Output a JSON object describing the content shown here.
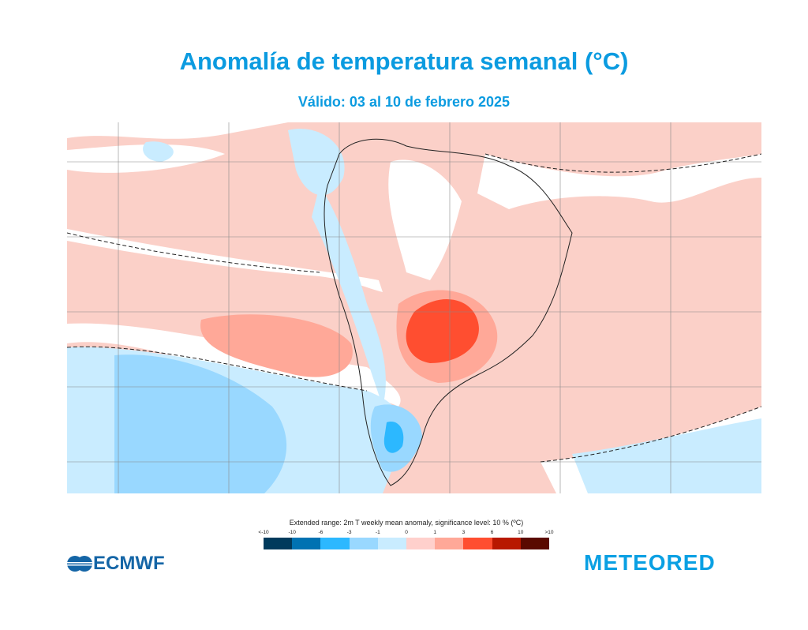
{
  "header": {
    "title": "Anomalía de temperatura semanal  (°C)",
    "subtitle": "Válido: 03 al 10 de febrero 2025"
  },
  "map": {
    "region": "South America",
    "variable": "2m temperature weekly mean anomaly",
    "contours": "dashed significance contours",
    "colors": {
      "background_land_ocean": "#fbd0c8",
      "near_zero": "#ffffff",
      "light_blue": "#c9ecff",
      "mid_blue": "#99d8ff",
      "blue": "#2cb8ff",
      "salmon": "#ffa898",
      "red": "#ff4e30"
    }
  },
  "legend": {
    "title": "Extended range: 2m T weekly mean anomaly, significance level: 10 % (ºC)",
    "ticks": [
      "<-10",
      "-10",
      "-6",
      "-3",
      "-1",
      "0",
      "1",
      "3",
      "6",
      "10",
      ">10"
    ],
    "colors": [
      "#003a5c",
      "#0072b2",
      "#2cb8ff",
      "#99d8ff",
      "#c9ecff",
      "#ffd0cc",
      "#ffa898",
      "#ff4e30",
      "#b81800",
      "#5a0a00"
    ]
  },
  "logos": {
    "left": "ECMWF",
    "right": "METEORED"
  }
}
